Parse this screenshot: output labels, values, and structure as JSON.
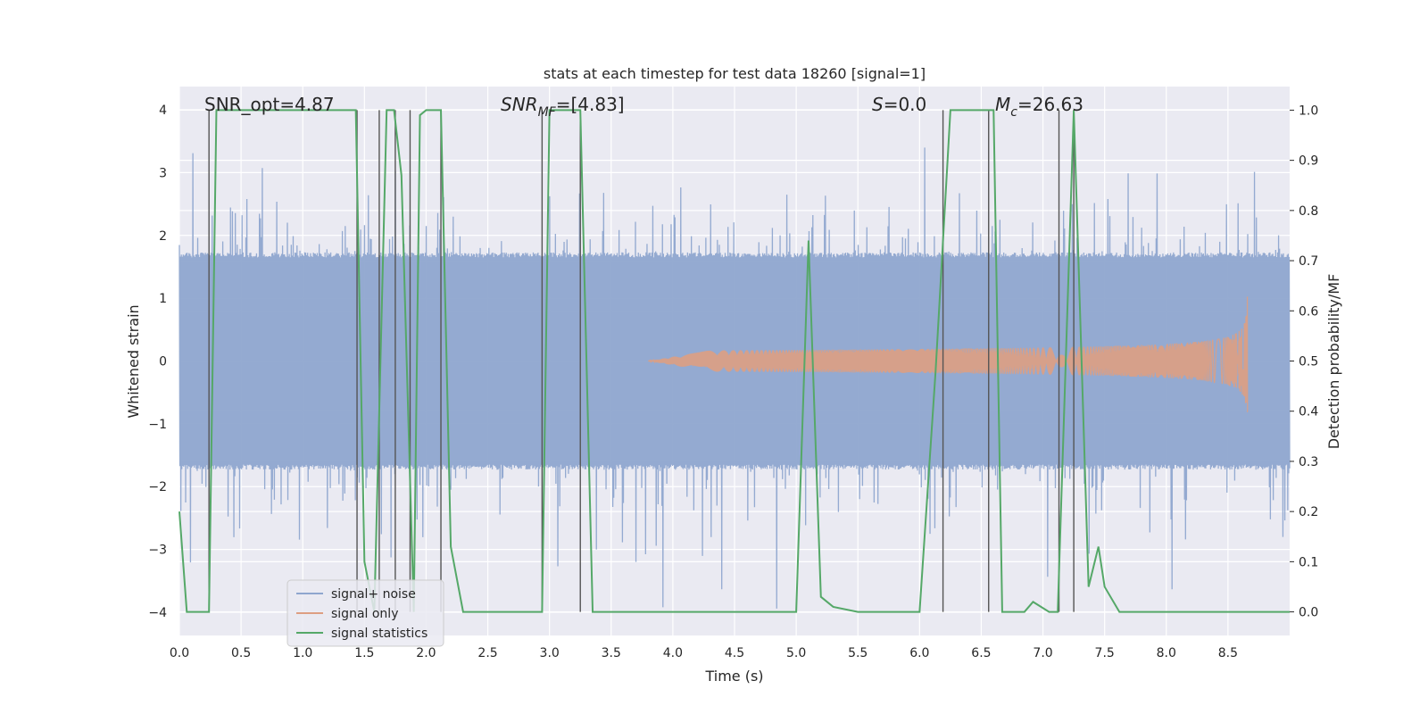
{
  "chart_data": {
    "type": "line",
    "title": "stats at each timestep for test data 18260 [signal=1]",
    "xlabel": "Time (s)",
    "ylabel_left": "Whitened strain",
    "ylabel_right": "Detection probability/MF",
    "xlim": [
      0.0,
      9.0
    ],
    "ylim_left": [
      -4.37,
      4.37
    ],
    "ylim_right": [
      -0.047,
      1.047
    ],
    "x_ticks": [
      0.0,
      0.5,
      1.0,
      1.5,
      2.0,
      2.5,
      3.0,
      3.5,
      4.0,
      4.5,
      5.0,
      5.5,
      6.0,
      6.5,
      7.0,
      7.5,
      8.0,
      8.5
    ],
    "x_tick_labels": [
      "0.0",
      "0.5",
      "1.0",
      "1.5",
      "2.0",
      "2.5",
      "3.0",
      "3.5",
      "4.0",
      "4.5",
      "5.0",
      "5.5",
      "6.0",
      "6.5",
      "7.0",
      "7.5",
      "8.0",
      "8.5"
    ],
    "y_left_ticks": [
      -4,
      -3,
      -2,
      -1,
      0,
      1,
      2,
      3,
      4
    ],
    "y_left_tick_labels": [
      "−4",
      "−3",
      "−2",
      "−1",
      "0",
      "1",
      "2",
      "3",
      "4"
    ],
    "y_right_ticks": [
      0.0,
      0.1,
      0.2,
      0.3,
      0.4,
      0.5,
      0.6,
      0.7,
      0.8,
      0.9,
      1.0
    ],
    "y_right_tick_labels": [
      "0.0",
      "0.1",
      "0.2",
      "0.3",
      "0.4",
      "0.5",
      "0.6",
      "0.7",
      "0.8",
      "0.9",
      "1.0"
    ],
    "annotations": {
      "snr_opt": "SNR_opt=4.87",
      "snr_mf_main": "SNR",
      "snr_mf_sub": "MF",
      "snr_mf_rest": "=[4.83]",
      "s_main": "S",
      "s_rest": "=0.0",
      "mc_main": "M",
      "mc_sub": "c",
      "mc_rest": "=26.63"
    },
    "legend": [
      {
        "label": "signal+ noise",
        "color": "#8fa6cf"
      },
      {
        "label": "signal only",
        "color": "#dd9e82"
      },
      {
        "label": "signal statistics",
        "color": "#55a868"
      }
    ],
    "noise": {
      "name": "signal+ noise",
      "color": "#8fa6cf",
      "t_start": 0.0,
      "t_end": 9.0,
      "n_samples": 2304,
      "envelope": 1.65,
      "spike_max": 4.0
    },
    "signal_only": {
      "name": "signal only",
      "color": "#dd9e82",
      "t_start": 3.8,
      "t_end": 8.66,
      "peak_amplitude": 1.1
    },
    "signal_statistics": {
      "name": "signal statistics",
      "color": "#55a868",
      "x": [
        0.0,
        0.06,
        0.24,
        0.3,
        0.4,
        1.0,
        1.43,
        1.5,
        1.58,
        1.68,
        1.74,
        1.8,
        1.9,
        1.95,
        2.0,
        2.12,
        2.2,
        2.3,
        2.5,
        2.7,
        2.8,
        2.94,
        3.0,
        3.25,
        3.35,
        3.5,
        4.0,
        5.0,
        5.1,
        5.2,
        5.3,
        5.5,
        6.0,
        6.13,
        6.25,
        6.35,
        6.5,
        6.6,
        6.67,
        6.78,
        6.85,
        6.92,
        7.05,
        7.12,
        7.25,
        7.37,
        7.45,
        7.5,
        7.62,
        8.0,
        8.5,
        8.6,
        8.66,
        9.0
      ],
      "y": [
        0.2,
        0.0,
        0.0,
        1.0,
        1.0,
        1.0,
        1.0,
        0.1,
        0.0,
        1.0,
        1.0,
        0.87,
        0.0,
        0.99,
        1.0,
        1.0,
        0.13,
        0.0,
        0.0,
        0.0,
        0.0,
        0.0,
        1.0,
        1.0,
        0.0,
        0.0,
        0.0,
        0.0,
        0.74,
        0.03,
        0.01,
        0.0,
        0.0,
        0.48,
        1.0,
        1.0,
        1.0,
        1.0,
        0.0,
        0.0,
        0.0,
        0.02,
        0.0,
        0.0,
        1.0,
        0.05,
        0.13,
        0.05,
        0.0,
        0.0,
        0.0,
        0.0,
        0.0,
        0.0
      ]
    },
    "vertical_markers_x": [
      0.24,
      1.44,
      1.62,
      1.75,
      1.87,
      2.12,
      2.94,
      3.25,
      6.19,
      6.56,
      7.13,
      7.25
    ]
  }
}
